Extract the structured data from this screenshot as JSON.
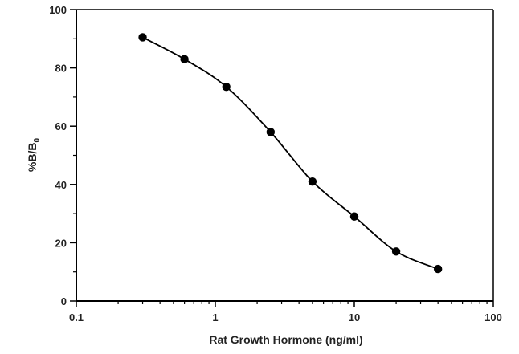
{
  "chart_data": {
    "type": "scatter",
    "title": "",
    "xlabel": "Rat Growth Hormone (ng/ml)",
    "ylabel": {
      "main": "%B/B",
      "subscript": "0"
    },
    "xscale": "log",
    "xlim": [
      0.1,
      100
    ],
    "ylim": [
      0,
      100
    ],
    "x_ticks": [
      0.1,
      1,
      10,
      100
    ],
    "x_tick_labels": [
      "0.1",
      "1",
      "10",
      "100"
    ],
    "y_ticks": [
      0,
      20,
      40,
      60,
      80,
      100
    ],
    "y_tick_labels": [
      "0",
      "20",
      "40",
      "60",
      "80",
      "100"
    ],
    "grid": false,
    "legend": "none",
    "series": [
      {
        "x": [
          0.3,
          0.6,
          1.2,
          2.5,
          5,
          10,
          20,
          40
        ],
        "y": [
          90.5,
          83,
          73.5,
          58,
          41,
          29,
          17,
          11
        ],
        "fit_curve": true
      }
    ],
    "colors": {
      "marker": "#000000",
      "curve": "#000000",
      "axis": "#000000"
    }
  }
}
